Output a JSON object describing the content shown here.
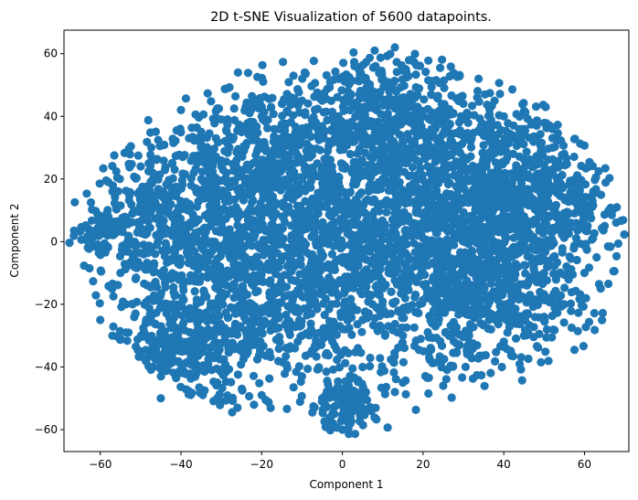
{
  "chart_data": {
    "type": "scatter",
    "title": "2D t-SNE Visualization of 5600 datapoints.",
    "xlabel": "Component 1",
    "ylabel": "Component 2",
    "xlim": [
      -69,
      71
    ],
    "ylim": [
      -67,
      67.5
    ],
    "x_ticks": [
      "−60",
      "−40",
      "−20",
      "0",
      "20",
      "40",
      "60"
    ],
    "x_tick_values": [
      -60,
      -40,
      -20,
      0,
      20,
      40,
      60
    ],
    "y_ticks": [
      "−60",
      "−40",
      "−20",
      "0",
      "20",
      "40",
      "60"
    ],
    "y_tick_values": [
      -60,
      -40,
      -20,
      0,
      20,
      40,
      60
    ],
    "grid": false,
    "point_color": "#1f77b4",
    "n_points": 5600,
    "points_sample": [
      [
        -63,
        4
      ],
      [
        -62,
        3
      ],
      [
        -60,
        5
      ],
      [
        -58,
        8
      ],
      [
        -58,
        19
      ],
      [
        -57,
        16
      ],
      [
        -56,
        6
      ],
      [
        -60,
        -25
      ],
      [
        -57,
        -30
      ],
      [
        -55,
        -31
      ],
      [
        -53,
        -29
      ],
      [
        -50,
        24
      ],
      [
        -48,
        25
      ],
      [
        -47,
        22
      ],
      [
        -45,
        10
      ],
      [
        -40,
        42
      ],
      [
        -38,
        33
      ],
      [
        -35,
        35
      ],
      [
        -30,
        39
      ],
      [
        -22,
        44
      ],
      [
        -20,
        40
      ],
      [
        -15,
        44
      ],
      [
        -10,
        45
      ],
      [
        -5,
        45
      ],
      [
        -3,
        51
      ],
      [
        3,
        56
      ],
      [
        8,
        61
      ],
      [
        13,
        62
      ],
      [
        17,
        58
      ],
      [
        12,
        50
      ],
      [
        22,
        47
      ],
      [
        30,
        44
      ],
      [
        40,
        40
      ],
      [
        52,
        36
      ],
      [
        55,
        28
      ],
      [
        58,
        18
      ],
      [
        62,
        13
      ],
      [
        66,
        10
      ],
      [
        68,
        11
      ],
      [
        65,
        5
      ],
      [
        63,
        -5
      ],
      [
        60,
        -10
      ],
      [
        55,
        -20
      ],
      [
        50,
        -24
      ],
      [
        45,
        -30
      ],
      [
        40,
        -33
      ],
      [
        32,
        -37
      ],
      [
        25,
        -46
      ],
      [
        15,
        -45
      ],
      [
        13,
        -48
      ],
      [
        5,
        -40
      ],
      [
        0,
        -52
      ],
      [
        -2,
        -55
      ],
      [
        2,
        -56
      ],
      [
        0,
        -60
      ],
      [
        -5,
        -50
      ],
      [
        -10,
        -43
      ],
      [
        -20,
        -49
      ],
      [
        -26,
        -53
      ],
      [
        -31,
        -45
      ],
      [
        -38,
        -48
      ],
      [
        -45,
        -50
      ],
      [
        -47,
        -40
      ],
      [
        -50,
        -35
      ],
      [
        -52,
        -20
      ],
      [
        -55,
        -10
      ],
      [
        -52,
        0
      ],
      [
        -48,
        10
      ],
      [
        -43,
        18
      ],
      [
        -36,
        25
      ],
      [
        -28,
        30
      ],
      [
        -12,
        20
      ],
      [
        0,
        10
      ],
      [
        10,
        20
      ],
      [
        20,
        15
      ],
      [
        30,
        5
      ],
      [
        40,
        10
      ],
      [
        45,
        0
      ],
      [
        35,
        -10
      ],
      [
        25,
        -20
      ],
      [
        10,
        -15
      ],
      [
        -5,
        -5
      ],
      [
        -20,
        -10
      ],
      [
        -30,
        -20
      ],
      [
        -35,
        -30
      ],
      [
        -40,
        -35
      ],
      [
        -25,
        -35
      ],
      [
        -10,
        -30
      ],
      [
        5,
        -25
      ],
      [
        15,
        -30
      ],
      [
        20,
        30
      ],
      [
        5,
        35
      ],
      [
        -8,
        30
      ],
      [
        -20,
        25
      ],
      [
        -30,
        10
      ],
      [
        -38,
        0
      ],
      [
        -45,
        -10
      ],
      [
        15,
        0
      ],
      [
        25,
        40
      ],
      [
        35,
        25
      ],
      [
        48,
        20
      ],
      [
        55,
        5
      ],
      [
        50,
        -10
      ]
    ]
  }
}
